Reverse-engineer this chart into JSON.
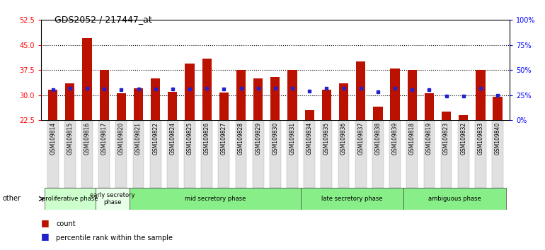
{
  "title": "GDS2052 / 217447_at",
  "samples": [
    "GSM109814",
    "GSM109815",
    "GSM109816",
    "GSM109817",
    "GSM109820",
    "GSM109821",
    "GSM109822",
    "GSM109824",
    "GSM109825",
    "GSM109826",
    "GSM109827",
    "GSM109828",
    "GSM109829",
    "GSM109830",
    "GSM109831",
    "GSM109834",
    "GSM109835",
    "GSM109836",
    "GSM109837",
    "GSM109838",
    "GSM109839",
    "GSM109818",
    "GSM109819",
    "GSM109823",
    "GSM109832",
    "GSM109833",
    "GSM109840"
  ],
  "counts": [
    31.5,
    33.5,
    47.0,
    37.5,
    30.5,
    32.0,
    35.0,
    31.0,
    39.5,
    41.0,
    30.7,
    37.5,
    35.0,
    35.5,
    37.5,
    25.5,
    31.5,
    33.5,
    40.0,
    26.5,
    38.0,
    37.5,
    30.5,
    25.0,
    24.0,
    37.5,
    29.5
  ],
  "percentile_ranks": [
    30,
    32,
    32,
    31,
    30,
    31,
    31,
    31,
    31,
    32,
    31,
    32,
    32,
    32,
    32,
    29,
    32,
    32,
    32,
    28,
    32,
    30,
    30,
    24,
    24,
    32,
    25
  ],
  "ylim_left": [
    22.5,
    52.5
  ],
  "ylim_right": [
    0,
    100
  ],
  "yticks_left": [
    22.5,
    30.0,
    37.5,
    45.0,
    52.5
  ],
  "yticks_right": [
    0,
    25,
    50,
    75,
    100
  ],
  "bar_color": "#bb1100",
  "dot_color": "#2222cc",
  "phases": [
    {
      "label": "proliferative phase",
      "start": 0,
      "end": 3,
      "color": "#ccffcc"
    },
    {
      "label": "early secretory\nphase",
      "start": 3,
      "end": 5,
      "color": "#e8ffe8"
    },
    {
      "label": "mid secretory phase",
      "start": 5,
      "end": 15,
      "color": "#88ee88"
    },
    {
      "label": "late secretory phase",
      "start": 15,
      "end": 21,
      "color": "#88ee88"
    },
    {
      "label": "ambiguous phase",
      "start": 21,
      "end": 27,
      "color": "#88ee88"
    }
  ],
  "bar_width": 0.55,
  "hline_color": "black",
  "hlines": [
    30.0,
    37.5,
    45.0
  ]
}
